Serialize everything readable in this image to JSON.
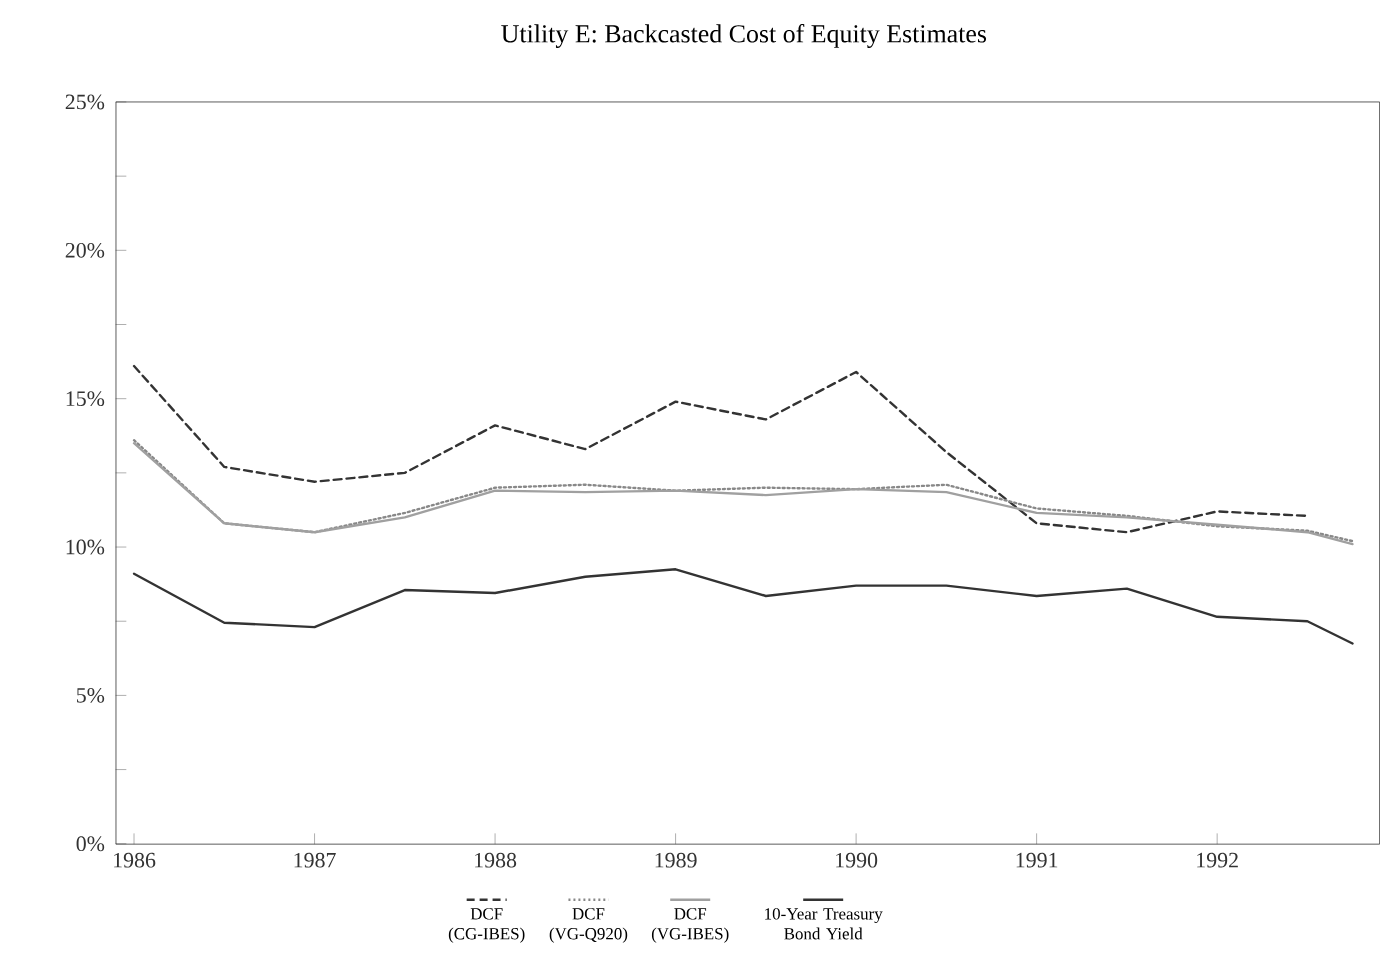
{
  "chart_data": {
    "type": "line",
    "title": "Utility E:  Backcasted Cost of Equity Estimates",
    "x": [
      1986,
      1986.5,
      1987,
      1987.5,
      1988,
      1988.5,
      1989,
      1989.5,
      1990,
      1990.5,
      1991,
      1991.5,
      1992,
      1992.5,
      1992.75
    ],
    "series": [
      {
        "name": "DCF (CG-IBES)",
        "color": "#333333",
        "line_style": "dashed",
        "values": [
          16.1,
          12.7,
          12.2,
          12.5,
          14.1,
          13.3,
          14.9,
          14.3,
          15.9,
          13.2,
          10.8,
          10.5,
          11.2,
          11.05,
          null
        ]
      },
      {
        "name": "DCF (VG-Q920)",
        "color": "#888888",
        "line_style": "dotted",
        "values": [
          13.6,
          10.8,
          10.5,
          11.15,
          12.0,
          12.1,
          11.9,
          12.0,
          11.95,
          12.1,
          11.3,
          11.05,
          10.7,
          10.55,
          10.2
        ]
      },
      {
        "name": "DCF (VG-IBES)",
        "color": "#a0a0a0",
        "line_style": "solid",
        "values": [
          13.5,
          10.8,
          10.5,
          11.0,
          11.9,
          11.85,
          11.9,
          11.75,
          11.95,
          11.85,
          11.15,
          11.0,
          10.75,
          10.5,
          10.1
        ]
      },
      {
        "name": "10-Year Treasury Bond Yield",
        "color": "#333333",
        "line_style": "solid",
        "values": [
          9.1,
          7.45,
          7.3,
          8.55,
          8.45,
          9.0,
          9.25,
          8.35,
          8.7,
          8.7,
          8.35,
          8.6,
          7.65,
          7.5,
          6.75
        ]
      }
    ],
    "xlim": [
      1985.9,
      1992.9
    ],
    "xticks": [
      1986,
      1987,
      1988,
      1989,
      1990,
      1991,
      1992
    ],
    "ylim": [
      0,
      25
    ],
    "yticks": [
      {
        "value": 0,
        "label": "0%"
      },
      {
        "value": 2.5,
        "label": null
      },
      {
        "value": 5,
        "label": "5%"
      },
      {
        "value": 7.5,
        "label": null
      },
      {
        "value": 10,
        "label": "10%"
      },
      {
        "value": 12.5,
        "label": null
      },
      {
        "value": 15,
        "label": "15%"
      },
      {
        "value": 17.5,
        "label": null
      },
      {
        "value": 20,
        "label": "20%"
      },
      {
        "value": 22.5,
        "label": null
      },
      {
        "value": 25,
        "label": "25%"
      }
    ],
    "legend": "bottom",
    "marker": "none",
    "grid": false
  }
}
